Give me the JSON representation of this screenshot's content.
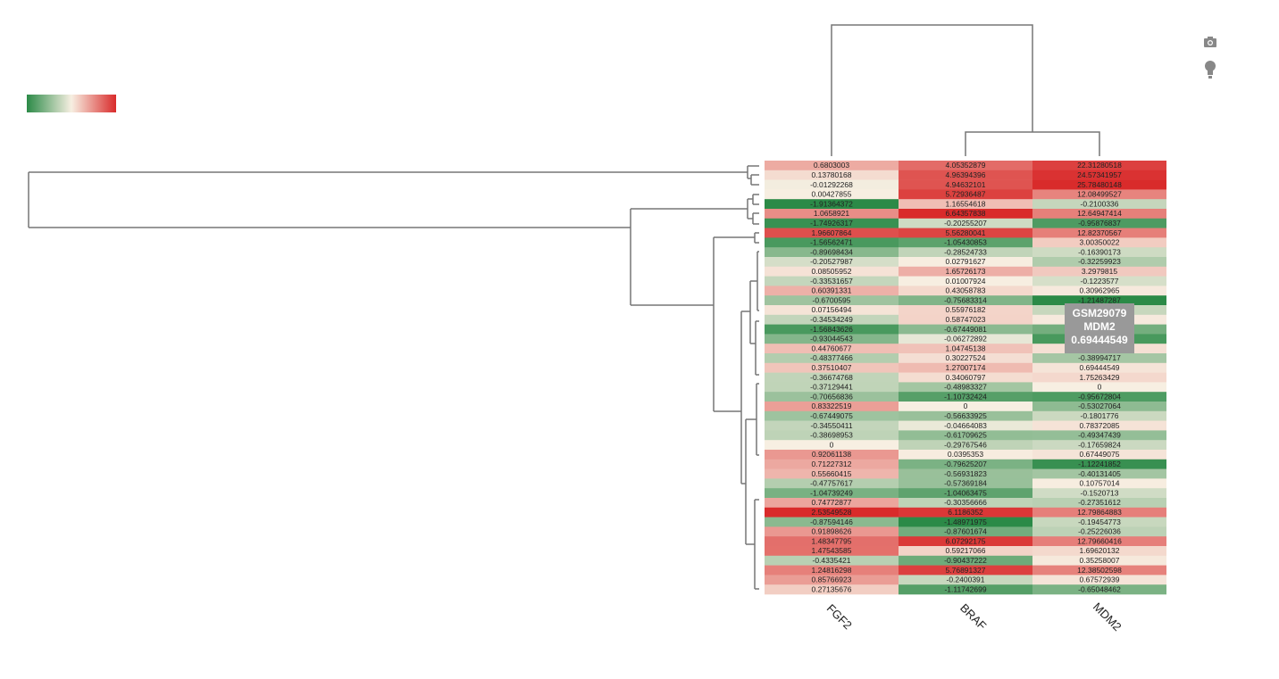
{
  "chart_data": {
    "type": "heatmap",
    "categories": [
      "FGF2",
      "BRAF",
      "MDM2"
    ],
    "colorscale": [
      "#2b8a47",
      "#f7efe2",
      "#d92b2b"
    ],
    "values": [
      [
        0.6803003,
        4.05352879,
        22.31280518
      ],
      [
        0.13780168,
        4.96394396,
        24.57341957
      ],
      [
        -0.01292268,
        4.94632101,
        25.78480148
      ],
      [
        0.00427855,
        5.72936487,
        12.08499527
      ],
      [
        -1.91364372,
        1.16554618,
        -0.2100336
      ],
      [
        1.0658921,
        6.64357838,
        12.64947414
      ],
      [
        -1.74926317,
        -0.20255207,
        -0.95876837
      ],
      [
        1.96607864,
        5.56280041,
        12.82370567
      ],
      [
        -1.56562471,
        -1.05430853,
        3.00350022
      ],
      [
        -0.89698434,
        -0.28524733,
        -0.16390173
      ],
      [
        -0.20527987,
        0.02791627,
        -0.32259923
      ],
      [
        0.08505952,
        1.65726173,
        3.2979815
      ],
      [
        -0.33531657,
        0.01007924,
        -0.1223577
      ],
      [
        0.60391331,
        0.43058783,
        0.30962965
      ],
      [
        -0.6700595,
        -0.75683314,
        -1.21487287
      ],
      [
        0.07156494,
        0.55976182,
        -0.2
      ],
      [
        -0.34534249,
        0.58747023,
        0.3
      ],
      [
        -1.56843626,
        -0.67449081,
        -0.7
      ],
      [
        -0.93044543,
        -0.06272892,
        -1.0
      ],
      [
        0.44760677,
        1.04745138,
        1.0
      ],
      [
        -0.48377466,
        0.30227524,
        -0.38994717
      ],
      [
        0.37510407,
        1.27007174,
        0.69444549
      ],
      [
        -0.36674768,
        0.34060797,
        1.75263429
      ],
      [
        -0.37129441,
        -0.48983327,
        0
      ],
      [
        -0.70656836,
        -1.10732424,
        -0.95672804
      ],
      [
        0.83322519,
        0,
        -0.53027064
      ],
      [
        -0.67449075,
        -0.56633925,
        -0.1801776
      ],
      [
        -0.34550411,
        -0.04664083,
        0.78372085
      ],
      [
        -0.38698953,
        -0.61709625,
        -0.49347439
      ],
      [
        0,
        -0.29767546,
        -0.17659824
      ],
      [
        0.92061138,
        0.0395353,
        0.67449075
      ],
      [
        0.71227312,
        -0.79625207,
        -1.12241852
      ],
      [
        0.55660415,
        -0.56931823,
        -0.40131405
      ],
      [
        -0.47757617,
        -0.57369184,
        0.10757014
      ],
      [
        -1.04739249,
        -1.04063475,
        -0.1520713
      ],
      [
        0.74772877,
        -0.30356666,
        -0.27351612
      ],
      [
        2.53549528,
        6.1186352,
        12.79864883
      ],
      [
        -0.87594146,
        -1.48971975,
        -0.19454773
      ],
      [
        0.91898626,
        -0.87601674,
        -0.25226036
      ],
      [
        1.48347795,
        6.07292175,
        12.79660416
      ],
      [
        1.47543585,
        0.59217066,
        1.69620132
      ],
      [
        -0.4335421,
        -0.90437222,
        0.35258007
      ],
      [
        1.24816298,
        5.76891327,
        12.38502598
      ],
      [
        0.85766923,
        -0.2400391,
        0.67572939
      ],
      [
        0.27135676,
        -1.11742699,
        -0.65048462
      ]
    ],
    "tooltip": [
      "GSM29079",
      "MDM2",
      "0.69444549"
    ]
  }
}
